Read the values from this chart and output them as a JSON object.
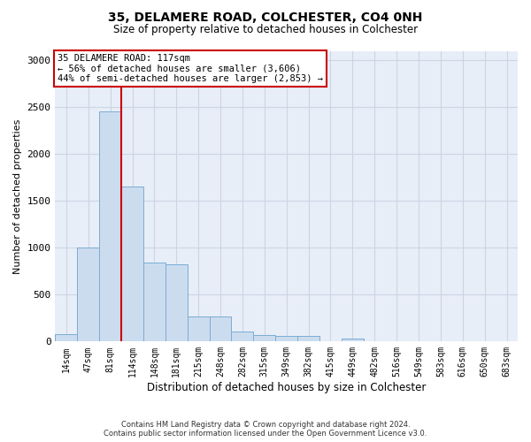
{
  "title1": "35, DELAMERE ROAD, COLCHESTER, CO4 0NH",
  "title2": "Size of property relative to detached houses in Colchester",
  "xlabel": "Distribution of detached houses by size in Colchester",
  "ylabel": "Number of detached properties",
  "footer1": "Contains HM Land Registry data © Crown copyright and database right 2024.",
  "footer2": "Contains public sector information licensed under the Open Government Licence v3.0.",
  "annotation_title": "35 DELAMERE ROAD: 117sqm",
  "annotation_line1": "← 56% of detached houses are smaller (3,606)",
  "annotation_line2": "44% of semi-detached houses are larger (2,853) →",
  "bar_labels": [
    "14sqm",
    "47sqm",
    "81sqm",
    "114sqm",
    "148sqm",
    "181sqm",
    "215sqm",
    "248sqm",
    "282sqm",
    "315sqm",
    "349sqm",
    "382sqm",
    "415sqm",
    "449sqm",
    "482sqm",
    "516sqm",
    "549sqm",
    "583sqm",
    "616sqm",
    "650sqm",
    "683sqm"
  ],
  "bar_values": [
    75,
    1000,
    2450,
    1650,
    840,
    820,
    270,
    270,
    110,
    65,
    60,
    55,
    0,
    30,
    0,
    0,
    0,
    0,
    0,
    0,
    0
  ],
  "bar_color": "#ccdcef",
  "bar_edge_color": "#7aadd4",
  "grid_color": "#ccd5e5",
  "background_color": "#e8eef8",
  "vline_color": "#cc0000",
  "annotation_box_color": "#ffffff",
  "annotation_box_edge": "#cc0000",
  "ylim": [
    0,
    3100
  ],
  "yticks": [
    0,
    500,
    1000,
    1500,
    2000,
    2500,
    3000
  ]
}
